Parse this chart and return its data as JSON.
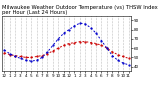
{
  "title": "Milwaukee Weather Outdoor Temperature (vs) THSW Index per Hour (Last 24 Hours)",
  "hours": [
    0,
    1,
    2,
    3,
    4,
    5,
    6,
    7,
    8,
    9,
    10,
    11,
    12,
    13,
    14,
    15,
    16,
    17,
    18,
    19,
    20,
    21,
    22,
    23
  ],
  "temp": [
    55,
    53,
    52,
    51,
    50,
    50,
    51,
    52,
    54,
    57,
    60,
    63,
    65,
    66,
    67,
    67,
    66,
    65,
    63,
    60,
    56,
    53,
    51,
    49
  ],
  "thsw": [
    58,
    54,
    51,
    49,
    47,
    46,
    47,
    50,
    56,
    63,
    70,
    76,
    80,
    84,
    87,
    86,
    82,
    76,
    68,
    60,
    52,
    47,
    44,
    42
  ],
  "temp_color": "#cc0000",
  "thsw_color": "#0000cc",
  "bg_color": "#ffffff",
  "grid_color": "#888888",
  "ylim": [
    35,
    95
  ],
  "ytick_values": [
    40,
    50,
    60,
    70,
    80,
    90
  ],
  "ytick_labels": [
    "40",
    "50",
    "60",
    "70",
    "80",
    "90"
  ],
  "xlabel_hours": [
    "12",
    "1",
    "2",
    "3",
    "4",
    "5",
    "6",
    "7",
    "8",
    "9",
    "10",
    "11",
    "12",
    "1",
    "2",
    "3",
    "4",
    "5",
    "6",
    "7",
    "8",
    "9",
    "10",
    "11"
  ],
  "title_fontsize": 3.8,
  "tick_fontsize": 3.0,
  "line_width": 0.7,
  "marker_size": 1.2
}
